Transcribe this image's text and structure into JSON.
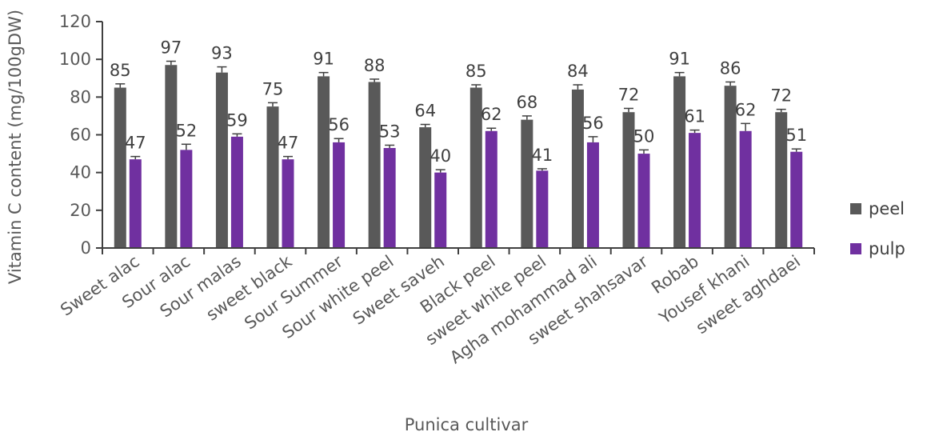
{
  "chart_data": {
    "type": "bar",
    "categories": [
      "Sweet alac",
      "Sour alac",
      "Sour malas",
      "sweet black",
      "Sour Summer",
      "Sour white peel",
      "Sweet saveh",
      "Black peel",
      "sweet white peel",
      "Agha mohammad ali",
      "sweet shahsavar",
      "Robab",
      "Yousef khani",
      "sweet aghdaei"
    ],
    "series": [
      {
        "name": "peel",
        "color": "#595959",
        "values": [
          85,
          97,
          93,
          75,
          91,
          88,
          64,
          85,
          68,
          84,
          72,
          91,
          86,
          72
        ],
        "errors": [
          2,
          2,
          3,
          2,
          2,
          1.5,
          1.5,
          1.5,
          2,
          2.5,
          2,
          2,
          2,
          1.5
        ]
      },
      {
        "name": "pulp",
        "color": "#7030a0",
        "values": [
          47,
          52,
          59,
          47,
          56,
          53,
          40,
          62,
          41,
          56,
          50,
          61,
          62,
          51
        ],
        "errors": [
          1.5,
          3,
          1.5,
          1.5,
          2,
          1.5,
          1.5,
          1.5,
          1,
          3,
          2,
          1.5,
          4,
          1.5
        ]
      }
    ],
    "data_labels": {
      "peel": [
        "85",
        "97",
        "93",
        "75",
        "91",
        "88",
        "64",
        "85",
        "68",
        "84",
        "72",
        "91",
        "86",
        "72"
      ],
      "pulp": [
        "47",
        "52",
        "59",
        "47",
        "56",
        "53",
        "40",
        "62",
        "41",
        "56",
        "50",
        "61",
        "62",
        "51"
      ]
    },
    "y_ticks": [
      "0",
      "20",
      "40",
      "60",
      "80",
      "100",
      "120"
    ],
    "ylim": [
      0,
      120
    ],
    "xlabel": "Punica cultivar",
    "ylabel": "Vitamin C content (mg/100gDW)",
    "title": "",
    "grid": false,
    "legend_position": "right",
    "axis_color": "#404040"
  }
}
